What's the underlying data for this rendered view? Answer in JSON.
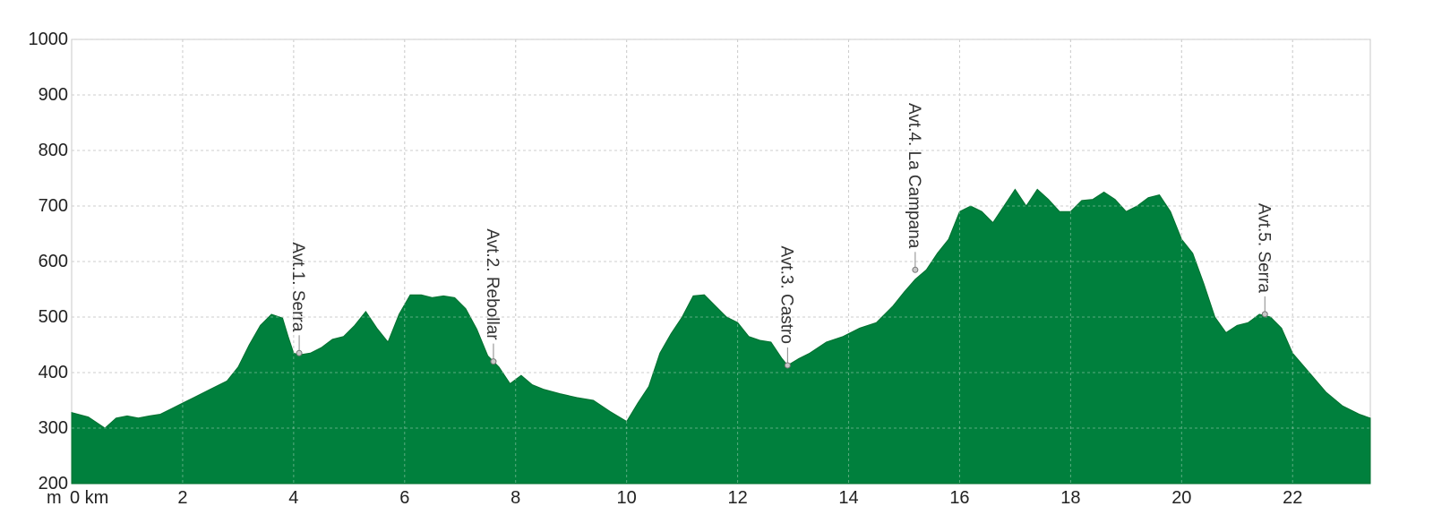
{
  "chart_data": {
    "type": "area",
    "title": "",
    "xlabel": "",
    "ylabel": "",
    "x_unit_label": "km",
    "y_unit_label": "m",
    "xlim": [
      0,
      23.4
    ],
    "ylim": [
      200,
      1000
    ],
    "x_ticks": [
      0,
      2,
      4,
      6,
      8,
      10,
      12,
      14,
      16,
      18,
      20,
      22
    ],
    "x_tick_labels": [
      "0 km",
      "2",
      "4",
      "6",
      "8",
      "10",
      "12",
      "14",
      "16",
      "18",
      "20",
      "22"
    ],
    "y_ticks": [
      200,
      300,
      400,
      500,
      600,
      700,
      800,
      900,
      1000
    ],
    "y_tick_labels": [
      "200",
      "300",
      "400",
      "500",
      "600",
      "700",
      "800",
      "900",
      "1000"
    ],
    "grid": true,
    "fill_color": "#00803d",
    "series": [
      {
        "x": [
          0,
          0.3,
          0.6,
          0.8,
          1.0,
          1.2,
          1.4,
          1.6,
          1.8,
          2.0,
          2.2,
          2.5,
          2.8,
          3.0,
          3.2,
          3.4,
          3.6,
          3.8,
          3.9,
          4.0,
          4.1,
          4.3,
          4.5,
          4.7,
          4.9,
          5.1,
          5.3,
          5.5,
          5.7,
          5.9,
          6.1,
          6.3,
          6.5,
          6.7,
          6.9,
          7.1,
          7.3,
          7.5,
          7.7,
          7.9,
          8.1,
          8.3,
          8.5,
          8.8,
          9.1,
          9.4,
          9.7,
          10.0,
          10.2,
          10.4,
          10.6,
          10.8,
          11.0,
          11.2,
          11.4,
          11.6,
          11.8,
          12.0,
          12.2,
          12.4,
          12.6,
          12.8,
          12.9,
          13.1,
          13.3,
          13.6,
          13.9,
          14.2,
          14.5,
          14.8,
          15.0,
          15.2,
          15.4,
          15.6,
          15.8,
          16.0,
          16.2,
          16.4,
          16.6,
          16.8,
          17.0,
          17.2,
          17.4,
          17.6,
          17.8,
          18.0,
          18.2,
          18.4,
          18.6,
          18.8,
          19.0,
          19.2,
          19.4,
          19.6,
          19.8,
          20.0,
          20.2,
          20.4,
          20.6,
          20.8,
          21.0,
          21.2,
          21.4,
          21.6,
          21.8,
          22.0,
          22.3,
          22.6,
          22.9,
          23.2,
          23.4
        ],
        "values": [
          328,
          320,
          300,
          318,
          322,
          318,
          322,
          325,
          335,
          345,
          355,
          370,
          385,
          410,
          450,
          485,
          505,
          498,
          465,
          435,
          432,
          435,
          445,
          460,
          465,
          485,
          510,
          480,
          455,
          505,
          540,
          540,
          535,
          538,
          535,
          515,
          478,
          430,
          410,
          380,
          395,
          378,
          370,
          362,
          355,
          350,
          330,
          312,
          345,
          375,
          435,
          470,
          500,
          538,
          540,
          520,
          500,
          490,
          465,
          458,
          455,
          425,
          413,
          425,
          435,
          455,
          465,
          480,
          490,
          520,
          545,
          568,
          585,
          615,
          640,
          690,
          700,
          690,
          670,
          700,
          730,
          700,
          730,
          712,
          690,
          690,
          710,
          712,
          725,
          712,
          690,
          700,
          715,
          720,
          690,
          640,
          615,
          560,
          500,
          472,
          485,
          490,
          505,
          500,
          480,
          435,
          400,
          365,
          340,
          325,
          318
        ]
      }
    ],
    "annotations": [
      {
        "label": "Avt.1. Serra",
        "x": 4.1,
        "y": 435
      },
      {
        "label": "Avt.2. Rebollar",
        "x": 7.6,
        "y": 420
      },
      {
        "label": "Avt.3. Castro",
        "x": 12.9,
        "y": 413
      },
      {
        "label": "Avt.4. La Campana",
        "x": 15.2,
        "y": 585
      },
      {
        "label": "Avt.5. Serra",
        "x": 21.5,
        "y": 505
      }
    ]
  }
}
